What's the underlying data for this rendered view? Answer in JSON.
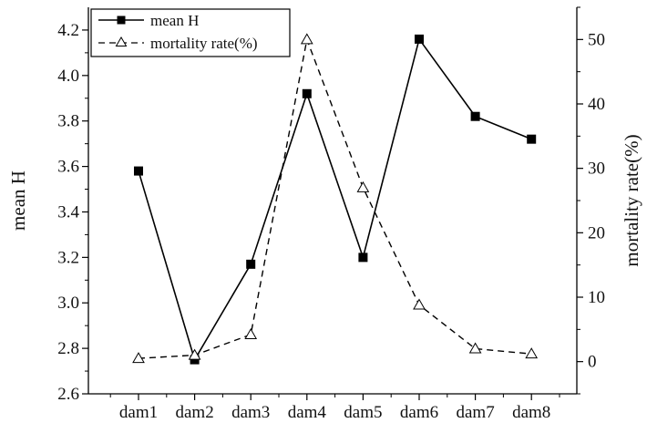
{
  "chart_data": {
    "type": "line",
    "categories": [
      "dam1",
      "dam2",
      "dam3",
      "dam4",
      "dam5",
      "dam6",
      "dam7",
      "dam8"
    ],
    "series": [
      {
        "name": "mean H",
        "axis": "left",
        "marker": "filled-square",
        "line_style": "solid",
        "values": [
          3.58,
          2.75,
          3.17,
          3.92,
          3.2,
          4.16,
          3.82,
          3.72
        ]
      },
      {
        "name": "mortality rate(%)",
        "axis": "right",
        "marker": "open-triangle",
        "line_style": "dashed",
        "values": [
          0.5,
          1.0,
          4.2,
          50.0,
          27.0,
          8.8,
          2.0,
          1.2
        ]
      }
    ],
    "y_left": {
      "label": "mean H",
      "range": [
        2.6,
        4.3
      ],
      "ticks": [
        "2.6",
        "2.8",
        "3.0",
        "3.2",
        "3.4",
        "3.6",
        "3.8",
        "4.0",
        "4.2"
      ]
    },
    "y_right": {
      "label": "mortality rate(%)",
      "range": [
        -5,
        55
      ],
      "ticks": [
        "0",
        "10",
        "20",
        "30",
        "40",
        "50"
      ]
    },
    "grid": false,
    "legend_position": "top-left",
    "colors": {
      "line": "#000000",
      "background": "#ffffff"
    }
  }
}
